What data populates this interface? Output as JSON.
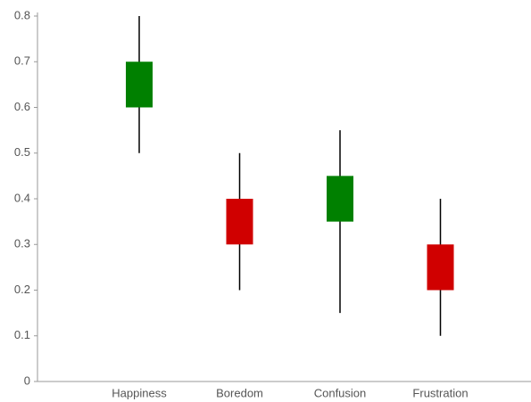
{
  "chart_data": {
    "type": "candlestick",
    "categories": [
      "Happiness",
      "Boredom",
      "Confusion",
      "Frustration"
    ],
    "open": [
      0.6,
      0.4,
      0.35,
      0.3
    ],
    "high": [
      0.8,
      0.5,
      0.55,
      0.4
    ],
    "low": [
      0.5,
      0.2,
      0.15,
      0.1
    ],
    "close": [
      0.7,
      0.3,
      0.45,
      0.2
    ],
    "up_color": "#008000",
    "down_color": "#d00000",
    "ylim": [
      0,
      0.8
    ],
    "yticks": [
      0,
      0.1,
      0.2,
      0.3,
      0.4,
      0.5,
      0.6,
      0.7,
      0.8
    ],
    "grid": false
  }
}
